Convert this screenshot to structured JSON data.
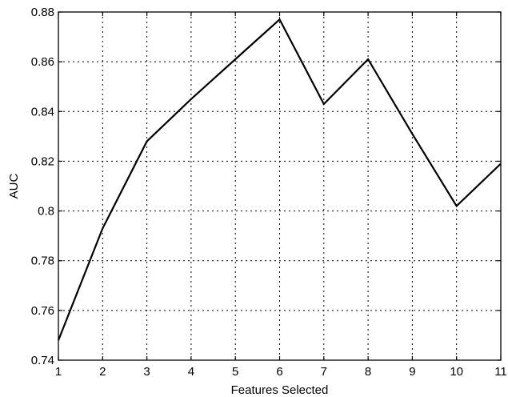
{
  "chart_data": {
    "type": "line",
    "xlabel": "Features Selected",
    "ylabel": "AUC",
    "xlim": [
      1,
      11
    ],
    "ylim": [
      0.74,
      0.88
    ],
    "grid": true,
    "x_ticks": [
      1,
      2,
      3,
      4,
      5,
      6,
      7,
      8,
      9,
      10,
      11
    ],
    "x_tick_labels": [
      "1",
      "2",
      "3",
      "4",
      "5",
      "6",
      "7",
      "8",
      "9",
      "10",
      "11"
    ],
    "y_ticks": [
      0.74,
      0.76,
      0.78,
      0.8,
      0.82,
      0.84,
      0.86,
      0.88
    ],
    "y_tick_labels": [
      "0.74",
      "0.76",
      "0.78",
      "0.8",
      "0.82",
      "0.84",
      "0.86",
      "0.88"
    ],
    "series": [
      {
        "x": [
          1,
          2,
          3,
          4,
          5,
          6,
          7,
          8,
          9,
          10,
          11
        ],
        "y": [
          0.748,
          0.793,
          0.828,
          0.845,
          0.861,
          0.877,
          0.843,
          0.861,
          0.831,
          0.802,
          0.819
        ],
        "color": "#000000"
      }
    ]
  }
}
